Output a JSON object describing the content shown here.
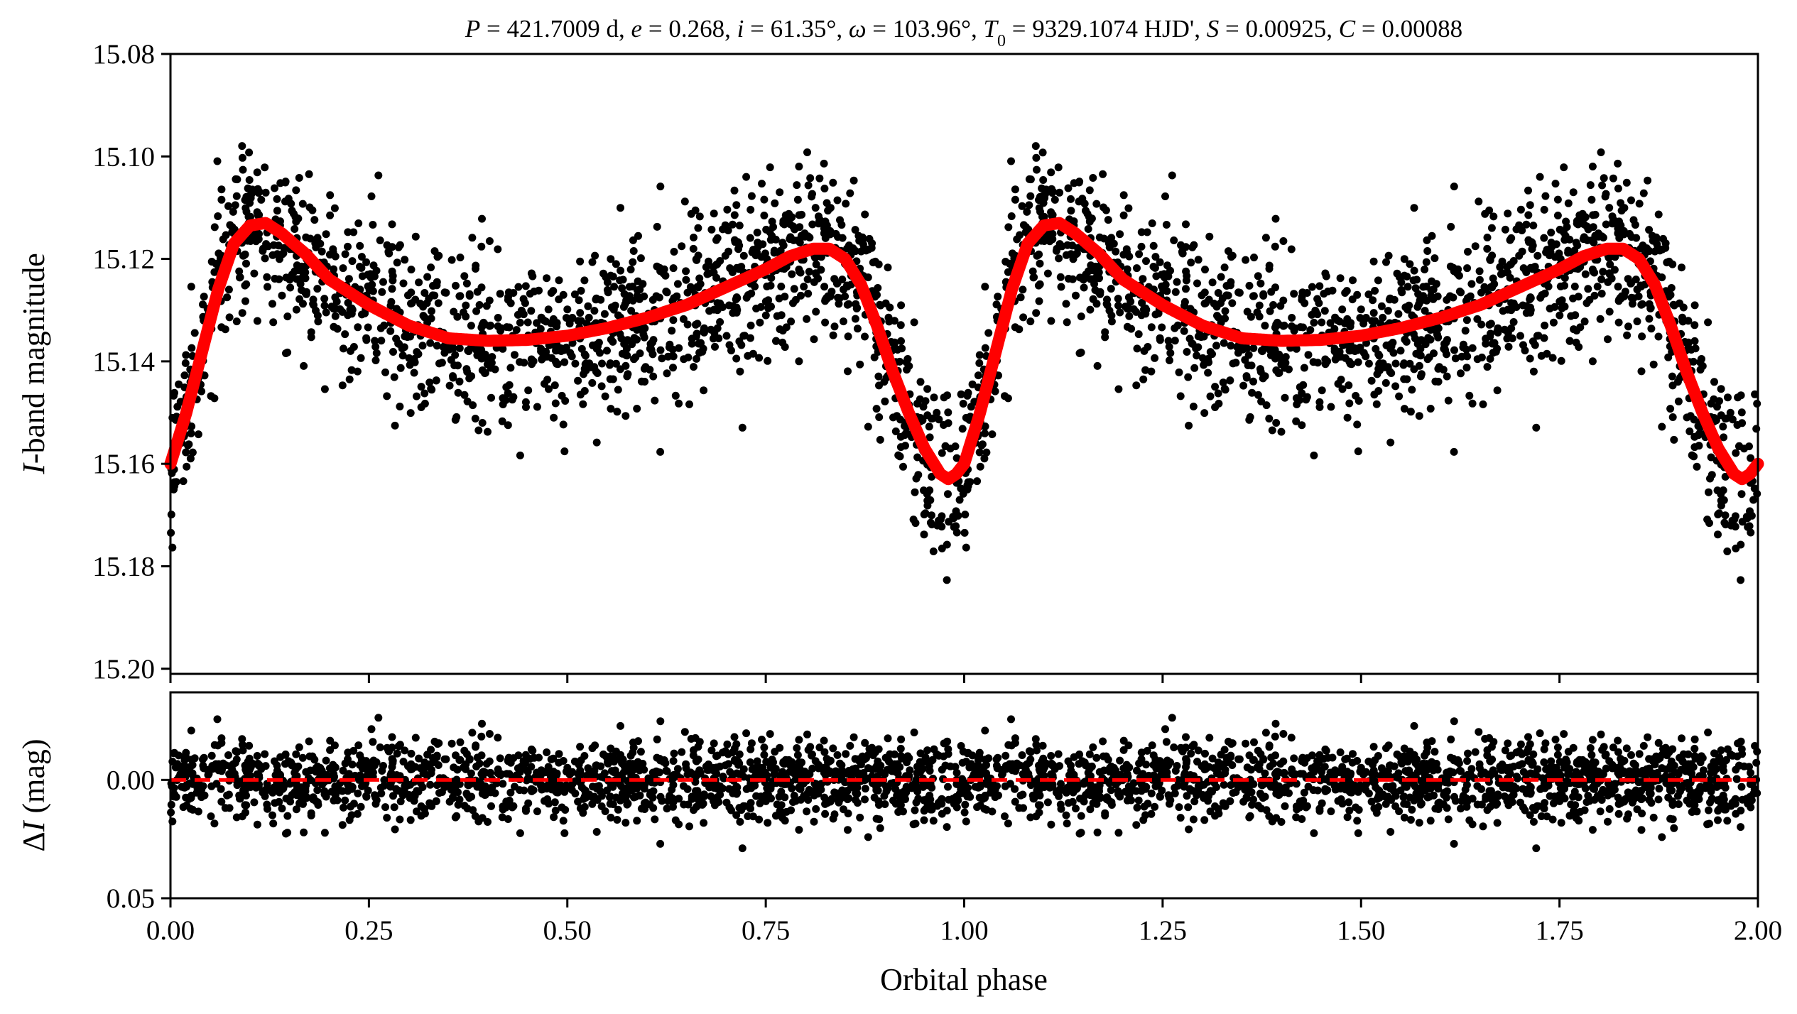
{
  "chart_data": [
    {
      "type": "scatter",
      "panel": "light-curve",
      "title_segments": [
        {
          "t": "P",
          "i": true
        },
        {
          "t": " = 421.7009 d, "
        },
        {
          "t": "e",
          "i": true
        },
        {
          "t": " = 0.268, "
        },
        {
          "t": "i",
          "i": true
        },
        {
          "t": " = 61.35°, "
        },
        {
          "t": "ω",
          "i": true
        },
        {
          "t": " = 103.96°, "
        },
        {
          "t": "T",
          "i": true
        },
        {
          "t": "0",
          "sub": true
        },
        {
          "t": " = 9329.1074 HJD', "
        },
        {
          "t": "S",
          "i": true
        },
        {
          "t": " = 0.00925, "
        },
        {
          "t": "C",
          "i": true
        },
        {
          "t": " = 0.00088"
        }
      ],
      "ylabel_italic": "I",
      "ylabel_rest": "-band magnitude",
      "xlim": [
        0,
        2
      ],
      "ylim": [
        15.201,
        15.08
      ],
      "y_inverted": true,
      "yticks": [
        15.08,
        15.1,
        15.12,
        15.14,
        15.16,
        15.18,
        15.2
      ],
      "ytick_labels": [
        "15.08",
        "15.10",
        "15.12",
        "15.14",
        "15.16",
        "15.18",
        "15.20"
      ],
      "xticks": [
        0,
        0.25,
        0.5,
        0.75,
        1.0,
        1.25,
        1.5,
        1.75,
        2.0
      ],
      "point_color": "#000000",
      "model_color": "#ff0000",
      "scatter_sigma_mag": 0.0085,
      "n_points_per_cycle": 1500,
      "model_curve": {
        "phase": [
          0.0,
          0.02,
          0.04,
          0.06,
          0.08,
          0.1,
          0.12,
          0.14,
          0.17,
          0.2,
          0.25,
          0.3,
          0.35,
          0.4,
          0.45,
          0.5,
          0.55,
          0.6,
          0.65,
          0.7,
          0.75,
          0.78,
          0.81,
          0.83,
          0.85,
          0.87,
          0.89,
          0.91,
          0.93,
          0.95,
          0.97,
          0.98,
          0.99,
          1.0
        ],
        "mag": [
          15.16,
          15.15,
          15.138,
          15.126,
          15.117,
          15.1135,
          15.113,
          15.115,
          15.119,
          15.124,
          15.129,
          15.133,
          15.1355,
          15.136,
          15.1358,
          15.135,
          15.1335,
          15.1315,
          15.129,
          15.1255,
          15.122,
          15.1195,
          15.118,
          15.118,
          15.12,
          15.125,
          15.133,
          15.142,
          15.15,
          15.157,
          15.162,
          15.163,
          15.162,
          15.16
        ]
      }
    },
    {
      "type": "scatter",
      "panel": "residuals",
      "ylabel_delta": "Δ",
      "ylabel_italic": "I",
      "ylabel_rest": " (mag)",
      "xlabel": "Orbital phase",
      "xlim": [
        0,
        2
      ],
      "ylim": [
        0.05,
        -0.037
      ],
      "y_inverted": true,
      "yticks": [
        0.0,
        0.05
      ],
      "ytick_labels": [
        "0.00",
        "0.05"
      ],
      "xticks": [
        0,
        0.25,
        0.5,
        0.75,
        1.0,
        1.25,
        1.5,
        1.75,
        2.0
      ],
      "xtick_labels": [
        "0.00",
        "0.25",
        "0.50",
        "0.75",
        "1.00",
        "1.25",
        "1.50",
        "1.75",
        "2.00"
      ],
      "zero_line": 0.0,
      "zero_line_color": "#ff0000"
    }
  ]
}
